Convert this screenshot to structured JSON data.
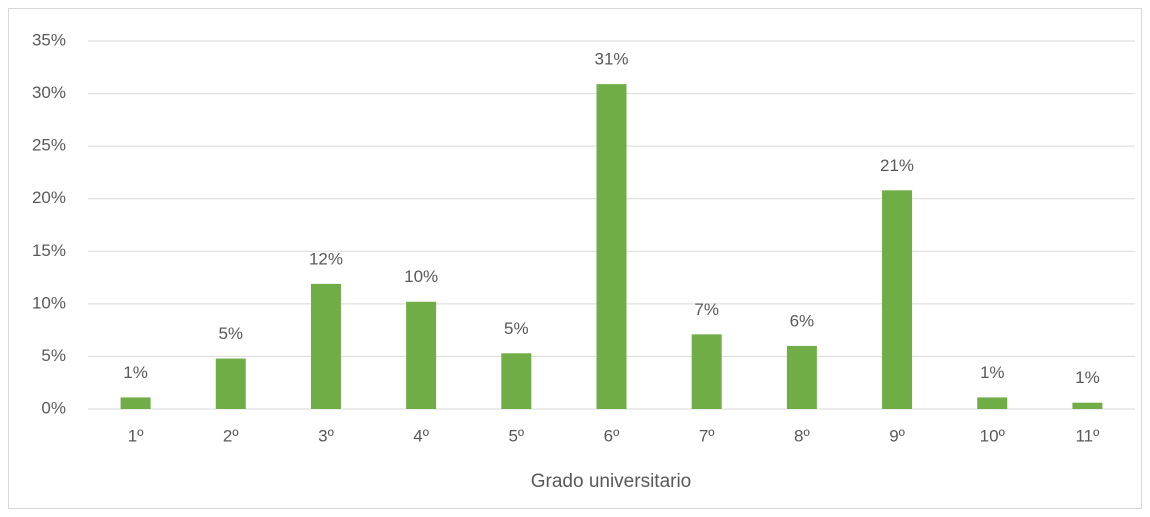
{
  "chart_data": {
    "type": "bar",
    "x_label": "Grado universitario",
    "categories": [
      "1º",
      "2º",
      "3º",
      "4º",
      "5º",
      "6º",
      "7º",
      "8º",
      "9º",
      "10º",
      "11º"
    ],
    "values": [
      1.1,
      4.8,
      11.9,
      10.2,
      5.3,
      30.9,
      7.1,
      6.0,
      20.8,
      1.1,
      0.6
    ],
    "value_labels": [
      "1%",
      "5%",
      "12%",
      "10%",
      "5%",
      "31%",
      "7%",
      "6%",
      "21%",
      "1%",
      "1%"
    ],
    "color": "#70ad47",
    "ylim": [
      0,
      35
    ],
    "yticks": [
      {
        "value": 0,
        "label": "0%"
      },
      {
        "value": 5,
        "label": "5%"
      },
      {
        "value": 10,
        "label": "10%"
      },
      {
        "value": 15,
        "label": "15%"
      },
      {
        "value": 20,
        "label": "20%"
      },
      {
        "value": 25,
        "label": "25%"
      },
      {
        "value": 30,
        "label": "30%"
      },
      {
        "value": 35,
        "label": "35%"
      }
    ],
    "grid": true
  }
}
